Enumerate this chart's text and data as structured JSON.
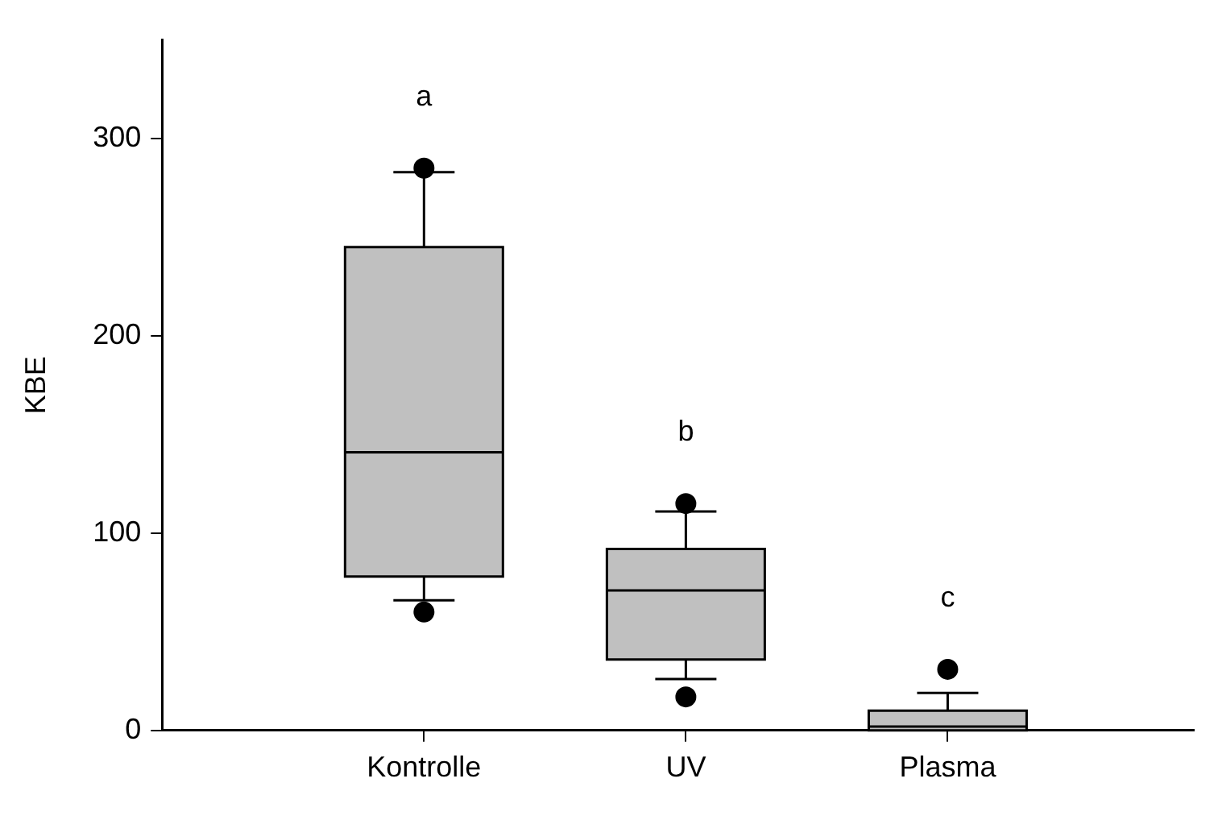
{
  "chart_data": {
    "type": "box",
    "categories": [
      "Kontrolle",
      "UV",
      "Plasma"
    ],
    "ylabel": "KBE",
    "ylim": [
      0,
      350
    ],
    "yticks": [
      0,
      100,
      200,
      300
    ],
    "grid": false,
    "legend": false,
    "color": "#c0c0c0",
    "boxes": [
      {
        "low": 66,
        "q1": 78,
        "median": 141,
        "q3": 245,
        "high": 283,
        "outliers": [
          285,
          60
        ]
      },
      {
        "low": 26,
        "q1": 36,
        "median": 71,
        "q3": 92,
        "high": 111,
        "outliers": [
          115,
          17
        ]
      },
      {
        "low": 0,
        "q1": 0,
        "median": 2,
        "q3": 10,
        "high": 19,
        "outliers": [
          31
        ]
      }
    ],
    "annotations": [
      "a",
      "b",
      "c"
    ]
  }
}
